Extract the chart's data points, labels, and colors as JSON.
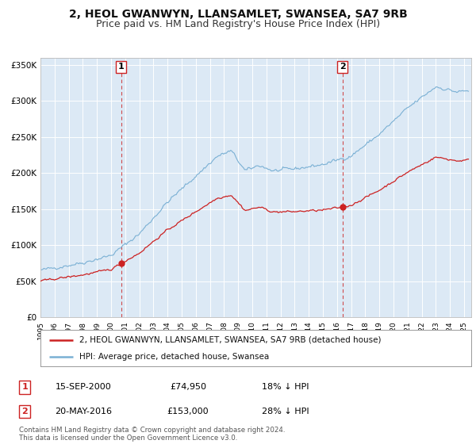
{
  "title": "2, HEOL GWANWYN, LLANSAMLET, SWANSEA, SA7 9RB",
  "subtitle": "Price paid vs. HM Land Registry's House Price Index (HPI)",
  "ylim": [
    0,
    360000
  ],
  "yticks": [
    0,
    50000,
    100000,
    150000,
    200000,
    250000,
    300000,
    350000
  ],
  "ytick_labels": [
    "£0",
    "£50K",
    "£100K",
    "£150K",
    "£200K",
    "£250K",
    "£300K",
    "£350K"
  ],
  "xlim_start": 1995.0,
  "xlim_end": 2025.5,
  "hpi_color": "#7ab0d4",
  "price_color": "#cc2222",
  "marker_color": "#cc2222",
  "plot_bg_color": "#dce9f5",
  "grid_color": "#ffffff",
  "sale1_date_x": 2000.71,
  "sale1_price": 74950,
  "sale2_date_x": 2016.38,
  "sale2_price": 153000,
  "legend_line1": "2, HEOL GWANWYN, LLANSAMLET, SWANSEA, SA7 9RB (detached house)",
  "legend_line2": "HPI: Average price, detached house, Swansea",
  "annotation1_date": "15-SEP-2000",
  "annotation1_price": "£74,950",
  "annotation1_hpi": "18% ↓ HPI",
  "annotation2_date": "20-MAY-2016",
  "annotation2_price": "£153,000",
  "annotation2_hpi": "28% ↓ HPI",
  "footer_line1": "Contains HM Land Registry data © Crown copyright and database right 2024.",
  "footer_line2": "This data is licensed under the Open Government Licence v3.0.",
  "title_fontsize": 10,
  "subtitle_fontsize": 9
}
